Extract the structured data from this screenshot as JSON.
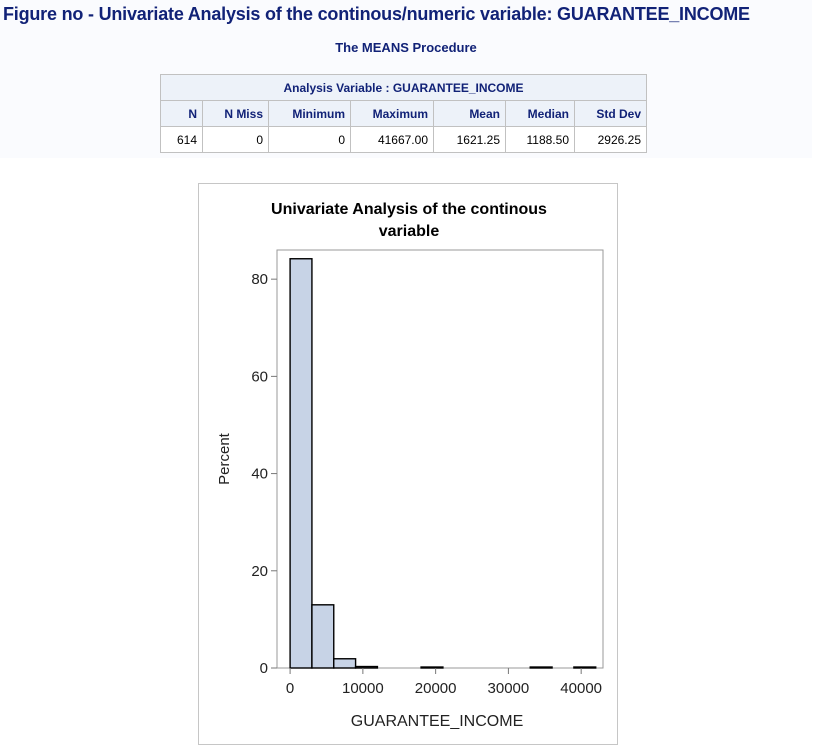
{
  "figure_title": "Figure no - Univariate Analysis of the continous/numeric variable: GUARANTEE_INCOME",
  "procedure_title": "The MEANS Procedure",
  "means_table": {
    "caption": "Analysis Variable : GUARANTEE_INCOME",
    "headers": [
      "N",
      "N Miss",
      "Minimum",
      "Maximum",
      "Mean",
      "Median",
      "Std Dev"
    ],
    "row": [
      "614",
      "0",
      "0",
      "41667.00",
      "1621.25",
      "1188.50",
      "2926.25"
    ]
  },
  "chart_data": {
    "type": "bar",
    "title": "Univariate Analysis of the continous variable",
    "title_lines": [
      "Univariate Analysis of the continous",
      "variable"
    ],
    "xlabel": "GUARANTEE_INCOME",
    "ylabel": "Percent",
    "xlim": [
      -1800,
      43000
    ],
    "ylim": [
      0,
      86
    ],
    "x_ticks": [
      0,
      10000,
      20000,
      30000,
      40000
    ],
    "y_ticks": [
      0,
      20,
      40,
      60,
      80
    ],
    "bin_width": 3000,
    "bins": [
      {
        "x0": 0,
        "x1": 3000,
        "value": 84.2
      },
      {
        "x0": 3000,
        "x1": 6000,
        "value": 13.0
      },
      {
        "x0": 6000,
        "x1": 9000,
        "value": 1.9
      },
      {
        "x0": 9000,
        "x1": 12000,
        "value": 0.3
      },
      {
        "x0": 12000,
        "x1": 15000,
        "value": 0
      },
      {
        "x0": 15000,
        "x1": 18000,
        "value": 0
      },
      {
        "x0": 18000,
        "x1": 21000,
        "value": 0.2
      },
      {
        "x0": 21000,
        "x1": 24000,
        "value": 0
      },
      {
        "x0": 24000,
        "x1": 27000,
        "value": 0
      },
      {
        "x0": 27000,
        "x1": 30000,
        "value": 0
      },
      {
        "x0": 30000,
        "x1": 33000,
        "value": 0
      },
      {
        "x0": 33000,
        "x1": 36000,
        "value": 0.2
      },
      {
        "x0": 36000,
        "x1": 39000,
        "value": 0
      },
      {
        "x0": 39000,
        "x1": 42000,
        "value": 0.2
      }
    ],
    "bar_fill": "#c7d3e6",
    "bar_stroke": "#000000",
    "grid": false
  }
}
